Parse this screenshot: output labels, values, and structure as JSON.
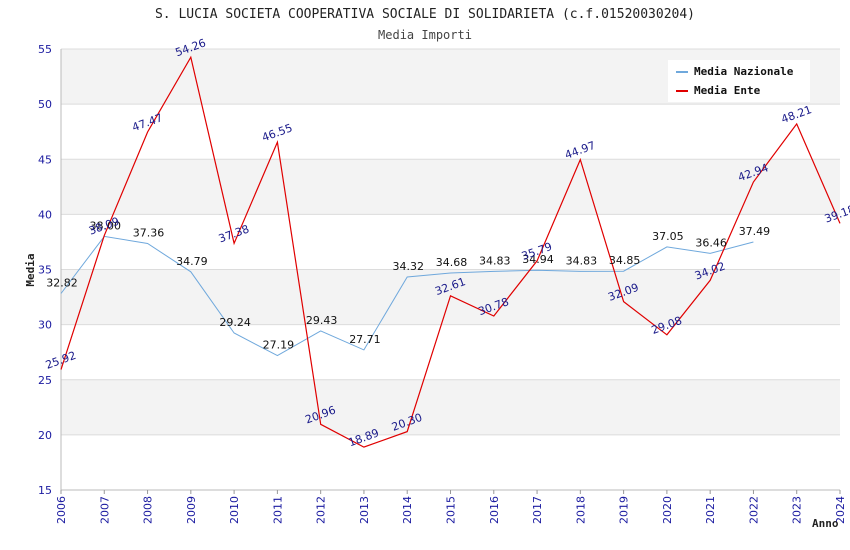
{
  "chart_data": {
    "type": "line",
    "title": "S. LUCIA SOCIETA COOPERATIVA SOCIALE DI SOLIDARIETA (c.f.01520030204)",
    "subtitle": "Media Importi",
    "xlabel": "Anno",
    "ylabel": "Media",
    "ylim": [
      15,
      55
    ],
    "yticks": [
      15,
      20,
      25,
      30,
      35,
      40,
      45,
      50,
      55
    ],
    "categories": [
      "2006",
      "2007",
      "2008",
      "2009",
      "2010",
      "2011",
      "2012",
      "2013",
      "2014",
      "2015",
      "2016",
      "2017",
      "2018",
      "2019",
      "2020",
      "2021",
      "2022",
      "2023",
      "2024"
    ],
    "legend_position": "top-right",
    "series": [
      {
        "name": "Media Nazionale",
        "color": "#6fa8dc",
        "values": [
          32.82,
          38.0,
          37.36,
          34.79,
          29.24,
          27.19,
          29.43,
          27.71,
          34.32,
          34.68,
          34.83,
          34.94,
          34.83,
          34.85,
          37.05,
          36.46,
          37.49,
          null,
          null
        ]
      },
      {
        "name": "Media Ente",
        "color": "#e00000",
        "values": [
          25.92,
          38.09,
          47.47,
          54.26,
          37.38,
          46.55,
          20.96,
          18.89,
          20.3,
          32.61,
          30.78,
          35.79,
          44.97,
          32.09,
          29.08,
          34.02,
          42.94,
          48.21,
          39.18
        ]
      }
    ]
  }
}
